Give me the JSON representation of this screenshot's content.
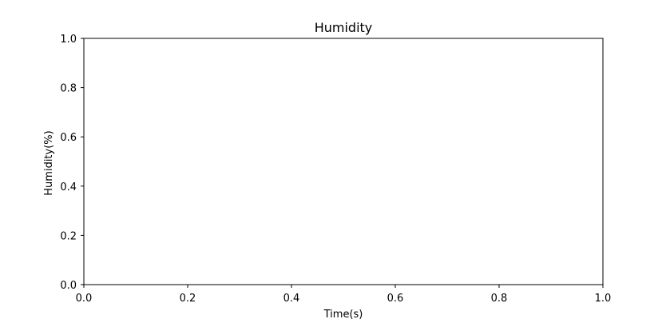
{
  "chart_data": {
    "type": "line",
    "title": "Humidity",
    "xlabel": "Time(s)",
    "ylabel": "Humidity(%)",
    "xlim": [
      0.0,
      1.0
    ],
    "ylim": [
      0.0,
      1.0
    ],
    "xticks": [
      0.0,
      0.2,
      0.4,
      0.6,
      0.8,
      1.0
    ],
    "yticks": [
      0.0,
      0.2,
      0.4,
      0.6,
      0.8,
      1.0
    ],
    "xtick_labels": [
      "0.0",
      "0.2",
      "0.4",
      "0.6",
      "0.8",
      "1.0"
    ],
    "ytick_labels": [
      "0.0",
      "0.2",
      "0.4",
      "0.6",
      "0.8",
      "1.0"
    ],
    "series": [],
    "grid": false,
    "legend": "none"
  }
}
